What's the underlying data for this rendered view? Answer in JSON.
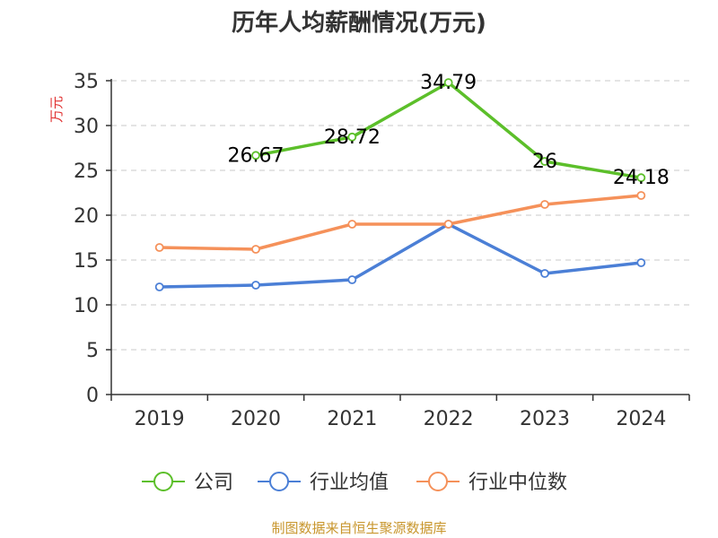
{
  "chart_data": {
    "type": "line",
    "title": "历年人均薪酬情况(万元)",
    "ylabel": "万元",
    "xlabel": "",
    "categories": [
      "2019",
      "2020",
      "2021",
      "2022",
      "2023",
      "2024"
    ],
    "ylim": [
      0,
      35
    ],
    "yticks": [
      0,
      5,
      10,
      15,
      20,
      25,
      30,
      35
    ],
    "grid": true,
    "legend_position": "bottom",
    "series": [
      {
        "name": "公司",
        "color": "#5cbf2a",
        "values": [
          null,
          26.67,
          28.72,
          34.79,
          26,
          24.18
        ],
        "labels": [
          "",
          "26.67",
          "28.72",
          "34.79",
          "26",
          "24.18"
        ]
      },
      {
        "name": "行业均值",
        "color": "#4b7fd6",
        "values": [
          12.0,
          12.2,
          12.8,
          19.0,
          13.5,
          14.7
        ],
        "labels": []
      },
      {
        "name": "行业中位数",
        "color": "#f5915a",
        "values": [
          16.4,
          16.2,
          19.0,
          19.0,
          21.2,
          22.2
        ],
        "labels": []
      }
    ]
  },
  "footer": {
    "source": "制图数据来自恒生聚源数据库"
  }
}
